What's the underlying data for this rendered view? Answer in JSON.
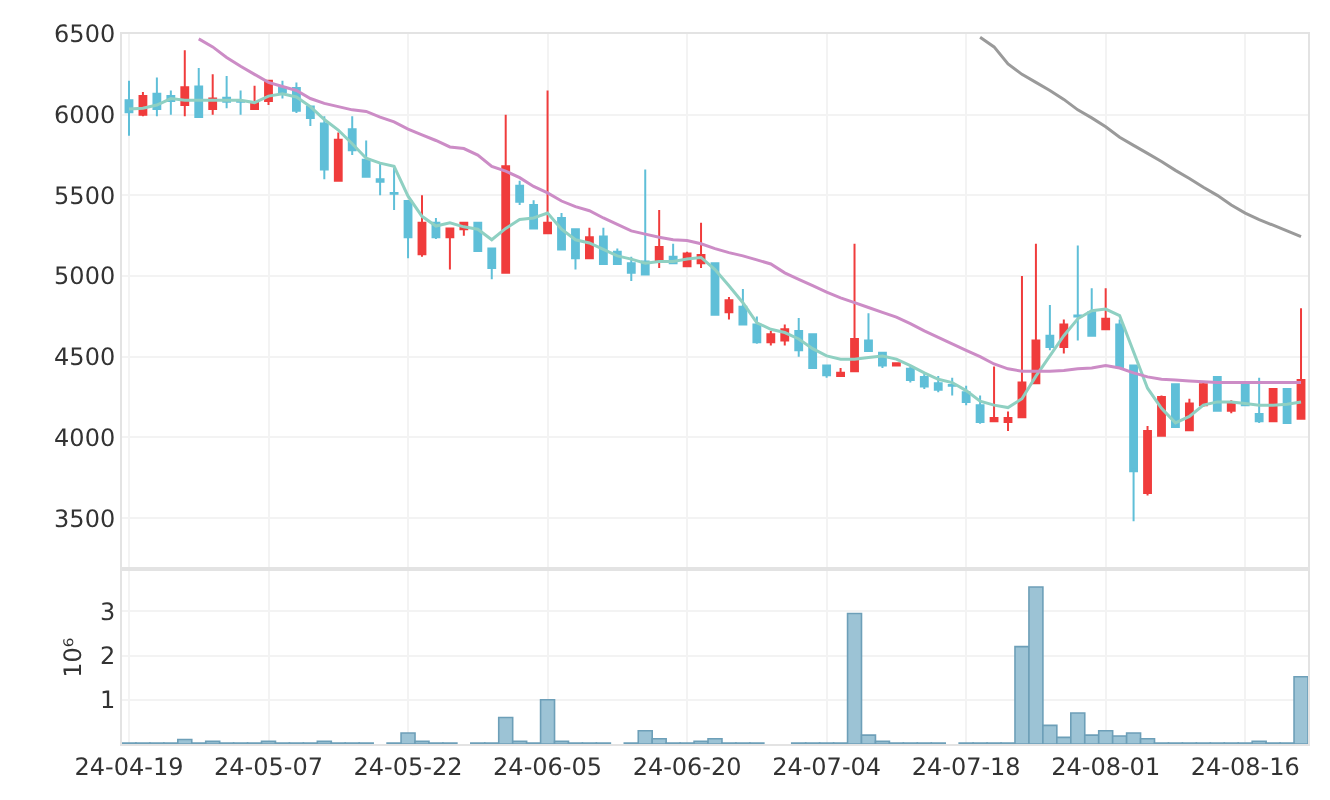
{
  "chart_data": [
    {
      "type": "candlestick",
      "tick_labels": "y",
      "grid": true,
      "categories": [
        null,
        null,
        null,
        null,
        null,
        null,
        null,
        null,
        null,
        null,
        null,
        null,
        null,
        null,
        null,
        null,
        null,
        null,
        null,
        null,
        null,
        null,
        null,
        null,
        null,
        null,
        null,
        null,
        null,
        null,
        null,
        null,
        null,
        null,
        null,
        null,
        null,
        null,
        null,
        null,
        null,
        null,
        null,
        null,
        null,
        null,
        null,
        null,
        null,
        null,
        null,
        null,
        null,
        null,
        null,
        null,
        null,
        null,
        null,
        null,
        null,
        null,
        null,
        null,
        null,
        null,
        null,
        null,
        null,
        null,
        null,
        null,
        null,
        null,
        null,
        null,
        null,
        null,
        null,
        null,
        null,
        null,
        null,
        null,
        null
      ],
      "ylim": [
        3200,
        6500
      ],
      "yticks": [
        3500,
        4000,
        4500,
        5000,
        5500,
        6000,
        6500
      ],
      "ohlc": [
        [
          6090,
          6210,
          5870,
          6015
        ],
        [
          6000,
          6140,
          5990,
          6115
        ],
        [
          6130,
          6230,
          5990,
          6035
        ],
        [
          6115,
          6150,
          6000,
          6085
        ],
        [
          6060,
          6400,
          5990,
          6170
        ],
        [
          6175,
          6290,
          5985,
          5985
        ],
        [
          6035,
          6250,
          6000,
          6100
        ],
        [
          6105,
          6240,
          6040,
          6080
        ],
        [
          6085,
          6150,
          6000,
          6080
        ],
        [
          6035,
          6180,
          6035,
          6075
        ],
        [
          6085,
          6215,
          6060,
          6210
        ],
        [
          6170,
          6210,
          6100,
          6140
        ],
        [
          6165,
          6200,
          6010,
          6025
        ],
        [
          6050,
          6050,
          5930,
          5980
        ],
        [
          5945,
          5990,
          5600,
          5660
        ],
        [
          5590,
          5890,
          5590,
          5845
        ],
        [
          5910,
          5990,
          5750,
          5780
        ],
        [
          5720,
          5840,
          5610,
          5615
        ],
        [
          5600,
          5700,
          5500,
          5585
        ],
        [
          5515,
          5670,
          5410,
          5510
        ],
        [
          5465,
          5465,
          5110,
          5240
        ],
        [
          5135,
          5500,
          5120,
          5330
        ],
        [
          5330,
          5360,
          5230,
          5240
        ],
        [
          5240,
          5300,
          5040,
          5295
        ],
        [
          5290,
          5330,
          5250,
          5330
        ],
        [
          5330,
          5330,
          5150,
          5155
        ],
        [
          5170,
          5170,
          4980,
          5050
        ],
        [
          5020,
          6000,
          5020,
          5680
        ],
        [
          5560,
          5590,
          5440,
          5460
        ],
        [
          5440,
          5470,
          5290,
          5295
        ],
        [
          5265,
          6150,
          5265,
          5330
        ],
        [
          5360,
          5390,
          5160,
          5165
        ],
        [
          5290,
          5290,
          5040,
          5110
        ],
        [
          5110,
          5300,
          5110,
          5240
        ],
        [
          5245,
          5300,
          5075,
          5075
        ],
        [
          5150,
          5170,
          5075,
          5075
        ],
        [
          5080,
          5120,
          4970,
          5020
        ],
        [
          5090,
          5660,
          5010,
          5010
        ],
        [
          5095,
          5410,
          5050,
          5180
        ],
        [
          5120,
          5200,
          5080,
          5080
        ],
        [
          5060,
          5150,
          5060,
          5140
        ],
        [
          5080,
          5330,
          5050,
          5130
        ],
        [
          5080,
          5080,
          4760,
          4760
        ],
        [
          4775,
          4870,
          4730,
          4850
        ],
        [
          4810,
          4920,
          4700,
          4700
        ],
        [
          4700,
          4750,
          4580,
          4590
        ],
        [
          4590,
          4660,
          4570,
          4640
        ],
        [
          4600,
          4700,
          4570,
          4670
        ],
        [
          4660,
          4740,
          4500,
          4540
        ],
        [
          4640,
          4640,
          4430,
          4430
        ],
        [
          4445,
          4445,
          4370,
          4385
        ],
        [
          4380,
          4430,
          4380,
          4400
        ],
        [
          4410,
          5200,
          4410,
          4610
        ],
        [
          4600,
          4770,
          4535,
          4535
        ],
        [
          4525,
          4525,
          4430,
          4445
        ],
        [
          4445,
          4460,
          4440,
          4460
        ],
        [
          4425,
          4440,
          4340,
          4355
        ],
        [
          4375,
          4400,
          4300,
          4315
        ],
        [
          4335,
          4380,
          4280,
          4295
        ],
        [
          4325,
          4370,
          4260,
          4320
        ],
        [
          4280,
          4320,
          4200,
          4220
        ],
        [
          4200,
          4260,
          4085,
          4095
        ],
        [
          4100,
          4440,
          4095,
          4120
        ],
        [
          4095,
          4160,
          4040,
          4120
        ],
        [
          4125,
          5000,
          4125,
          4340
        ],
        [
          4335,
          5200,
          4330,
          4600
        ],
        [
          4630,
          4820,
          4540,
          4560
        ],
        [
          4560,
          4730,
          4520,
          4700
        ],
        [
          4755,
          5190,
          4600,
          4750
        ],
        [
          4775,
          4925,
          4630,
          4630
        ],
        [
          4670,
          4925,
          4670,
          4735
        ],
        [
          4700,
          4730,
          4435,
          4435
        ],
        [
          4445,
          4445,
          3480,
          3790
        ],
        [
          3655,
          4070,
          3640,
          4040
        ],
        [
          4010,
          4260,
          4010,
          4250
        ],
        [
          4330,
          4330,
          4060,
          4065
        ],
        [
          4045,
          4240,
          4040,
          4210
        ],
        [
          4200,
          4340,
          4190,
          4330
        ],
        [
          4375,
          4375,
          4165,
          4165
        ],
        [
          4165,
          4230,
          4150,
          4220
        ],
        [
          4340,
          4340,
          4200,
          4200
        ],
        [
          4145,
          4370,
          4090,
          4100
        ],
        [
          4100,
          4300,
          4100,
          4300
        ],
        [
          4300,
          4300,
          4090,
          4090
        ],
        [
          4115,
          4800,
          4115,
          4355
        ]
      ],
      "colors": [
        "#5fbfd8",
        "#f03c3c",
        "#5fbfd8",
        "#5fbfd8",
        "#f03c3c",
        "#5fbfd8",
        "#f03c3c",
        "#5fbfd8",
        "#5fbfd8",
        "#f03c3c",
        "#f03c3c",
        "#5fbfd8",
        "#5fbfd8",
        "#5fbfd8",
        "#5fbfd8",
        "#f03c3c",
        "#5fbfd8",
        "#5fbfd8",
        "#5fbfd8",
        "#5fbfd8",
        "#5fbfd8",
        "#f03c3c",
        "#5fbfd8",
        "#f03c3c",
        "#f03c3c",
        "#5fbfd8",
        "#5fbfd8",
        "#f03c3c",
        "#5fbfd8",
        "#5fbfd8",
        "#f03c3c",
        "#5fbfd8",
        "#5fbfd8",
        "#f03c3c",
        "#5fbfd8",
        "#5fbfd8",
        "#5fbfd8",
        "#5fbfd8",
        "#f03c3c",
        "#5fbfd8",
        "#f03c3c",
        "#f03c3c",
        "#5fbfd8",
        "#f03c3c",
        "#5fbfd8",
        "#5fbfd8",
        "#f03c3c",
        "#f03c3c",
        "#5fbfd8",
        "#5fbfd8",
        "#5fbfd8",
        "#f03c3c",
        "#f03c3c",
        "#5fbfd8",
        "#5fbfd8",
        "#f03c3c",
        "#5fbfd8",
        "#5fbfd8",
        "#5fbfd8",
        "#5fbfd8",
        "#5fbfd8",
        "#5fbfd8",
        "#f03c3c",
        "#f03c3c",
        "#f03c3c",
        "#f03c3c",
        "#5fbfd8",
        "#f03c3c",
        "#5fbfd8",
        "#5fbfd8",
        "#f03c3c",
        "#5fbfd8",
        "#5fbfd8",
        "#f03c3c",
        "#f03c3c",
        "#5fbfd8",
        "#f03c3c",
        "#f03c3c",
        "#5fbfd8",
        "#f03c3c",
        "#5fbfd8",
        "#5fbfd8",
        "#f03c3c",
        "#5fbfd8",
        "#f03c3c"
      ],
      "series": [
        {
          "type": "line",
          "color": "#8fd0c2",
          "values": [
            6035,
            6040,
            6060,
            6100,
            6090,
            6090,
            6090,
            6090,
            6090,
            6075,
            6115,
            6130,
            6110,
            6050,
            5970,
            5905,
            5820,
            5730,
            5700,
            5680,
            5495,
            5370,
            5310,
            5330,
            5305,
            5290,
            5225,
            5295,
            5350,
            5360,
            5390,
            5290,
            5225,
            5205,
            5165,
            5125,
            5105,
            5080,
            5090,
            5090,
            5105,
            5115,
            5040,
            4940,
            4835,
            4710,
            4670,
            4650,
            4610,
            4550,
            4505,
            4485,
            4485,
            4495,
            4505,
            4485,
            4445,
            4400,
            4360,
            4340,
            4290,
            4225,
            4200,
            4185,
            4240,
            4380,
            4505,
            4630,
            4735,
            4785,
            4795,
            4755,
            4530,
            4305,
            4180,
            4090,
            4130,
            4200,
            4220,
            4220,
            4210,
            4200,
            4200,
            4205,
            4220
          ]
        },
        {
          "type": "line",
          "color": "#cc8cc6",
          "values": [
            null,
            null,
            null,
            null,
            null,
            6470,
            6420,
            6355,
            6300,
            6250,
            6200,
            6175,
            6150,
            6100,
            6070,
            6050,
            6030,
            6020,
            5985,
            5955,
            5910,
            5875,
            5840,
            5800,
            5790,
            5750,
            5680,
            5650,
            5610,
            5555,
            5515,
            5465,
            5430,
            5405,
            5360,
            5320,
            5280,
            5260,
            5240,
            5225,
            5220,
            5200,
            5170,
            5145,
            5125,
            5100,
            5075,
            5020,
            4980,
            4940,
            4900,
            4865,
            4835,
            4805,
            4775,
            4745,
            4705,
            4660,
            4620,
            4580,
            4540,
            4500,
            4455,
            4425,
            4410,
            4410,
            4410,
            4415,
            4425,
            4430,
            4445,
            4430,
            4400,
            4375,
            4360,
            4355,
            4350,
            4345,
            4340,
            4340,
            4340,
            4340,
            4340,
            4340,
            4340
          ]
        },
        {
          "type": "line",
          "color": "#9a9a9a",
          "values": [
            null,
            null,
            null,
            null,
            null,
            null,
            null,
            null,
            null,
            null,
            null,
            null,
            null,
            null,
            null,
            null,
            null,
            null,
            null,
            null,
            null,
            null,
            null,
            null,
            null,
            null,
            null,
            null,
            null,
            null,
            null,
            null,
            null,
            null,
            null,
            null,
            null,
            null,
            null,
            null,
            null,
            null,
            null,
            null,
            null,
            null,
            null,
            null,
            null,
            null,
            null,
            null,
            null,
            null,
            null,
            null,
            null,
            null,
            null,
            null,
            null,
            6480,
            6420,
            6315,
            6250,
            6200,
            6150,
            6095,
            6030,
            5980,
            5925,
            5860,
            5810,
            5760,
            5710,
            5655,
            5605,
            5550,
            5500,
            5440,
            5390,
            5350,
            5315,
            5280,
            5245
          ]
        }
      ]
    },
    {
      "type": "bar",
      "grid": true,
      "ylabel": "10⁶",
      "color": "#9cc3d5",
      "categories": [
        "24-04-19",
        null,
        null,
        null,
        null,
        null,
        null,
        null,
        null,
        null,
        "24-05-07",
        null,
        null,
        null,
        null,
        null,
        null,
        null,
        null,
        null,
        "24-05-22",
        null,
        null,
        null,
        null,
        null,
        null,
        null,
        null,
        null,
        "24-06-05",
        null,
        null,
        null,
        null,
        null,
        null,
        null,
        null,
        null,
        "24-06-20",
        null,
        null,
        null,
        null,
        null,
        null,
        null,
        null,
        null,
        "24-07-04",
        null,
        null,
        null,
        null,
        null,
        null,
        null,
        null,
        null,
        "24-07-18",
        null,
        null,
        null,
        null,
        null,
        null,
        null,
        null,
        null,
        "24-08-01",
        null,
        null,
        null,
        null,
        null,
        null,
        null,
        null,
        null,
        "24-08-16",
        null,
        null,
        null,
        null
      ],
      "ylim": [
        0,
        3.9
      ],
      "yticks": [
        1,
        2,
        3
      ],
      "values": [
        0.02,
        0.02,
        0.02,
        0.02,
        0.1,
        0.02,
        0.06,
        0.02,
        0.02,
        0.02,
        0.06,
        0.02,
        0.02,
        0.02,
        0.06,
        0.02,
        0.02,
        0.02,
        null,
        0.02,
        0.25,
        0.06,
        0.02,
        0.02,
        null,
        0.02,
        0.02,
        0.6,
        0.06,
        0.02,
        1.0,
        0.06,
        0.02,
        0.02,
        0.02,
        null,
        0.02,
        0.3,
        0.12,
        0.02,
        0.02,
        0.06,
        0.12,
        0.02,
        0.02,
        0.02,
        null,
        null,
        0.02,
        0.02,
        0.02,
        0.02,
        2.95,
        0.2,
        0.06,
        0.02,
        0.02,
        0.02,
        0.02,
        null,
        0.02,
        0.02,
        0.02,
        0.02,
        2.2,
        3.55,
        0.42,
        0.15,
        0.7,
        0.2,
        0.3,
        0.18,
        0.25,
        0.12,
        0.02,
        0.02,
        0.02,
        0.02,
        0.02,
        0.02,
        0.02,
        0.06,
        0.02,
        0.02,
        1.52
      ]
    }
  ]
}
